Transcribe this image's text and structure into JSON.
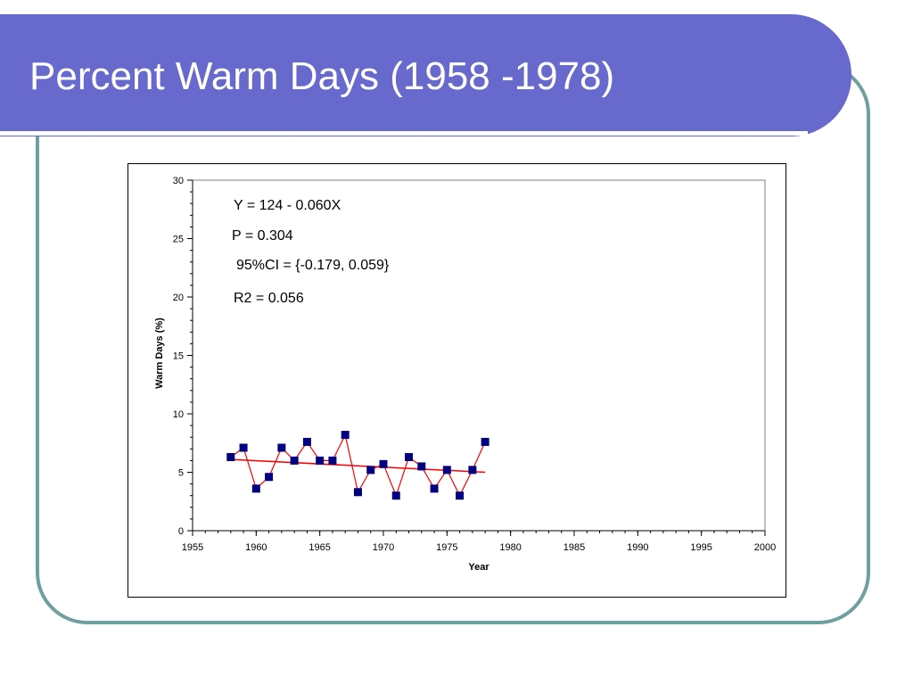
{
  "slide": {
    "title": "Percent Warm Days (1958 -1978)",
    "colors": {
      "title_bar": "#6769cd",
      "frame": "#6f9f9f",
      "marker": "#000080",
      "line": "#ff0000"
    }
  },
  "annotations": {
    "equation": "Y = 124 - 0.060X",
    "p_value": "P = 0.304",
    "ci": "95%CI = {-0.179, 0.059}",
    "r2": "R2 = 0.056"
  },
  "chart_data": {
    "type": "line",
    "title": "",
    "xlabel": "Year",
    "ylabel": "Warm Days (%)",
    "xlim": [
      1955,
      2000
    ],
    "ylim": [
      0,
      30
    ],
    "x_ticks": [
      1955,
      1960,
      1965,
      1970,
      1975,
      1980,
      1985,
      1990,
      1995,
      2000
    ],
    "y_ticks": [
      0,
      5,
      10,
      15,
      20,
      25,
      30
    ],
    "grid": false,
    "series": [
      {
        "marker": "square",
        "x": [
          1958,
          1959,
          1960,
          1961,
          1962,
          1963,
          1964,
          1965,
          1966,
          1967,
          1968,
          1969,
          1970,
          1971,
          1972,
          1973,
          1974,
          1975,
          1976,
          1977,
          1978
        ],
        "y": [
          6.3,
          7.1,
          3.6,
          4.6,
          7.1,
          6.0,
          7.6,
          6.0,
          6.0,
          8.2,
          3.3,
          5.2,
          5.7,
          3.0,
          6.3,
          5.5,
          3.6,
          5.2,
          3.0,
          5.2,
          7.6
        ]
      }
    ],
    "trendline": {
      "x": [
        1958,
        1978
      ],
      "y": [
        6.1,
        5.0
      ]
    }
  }
}
